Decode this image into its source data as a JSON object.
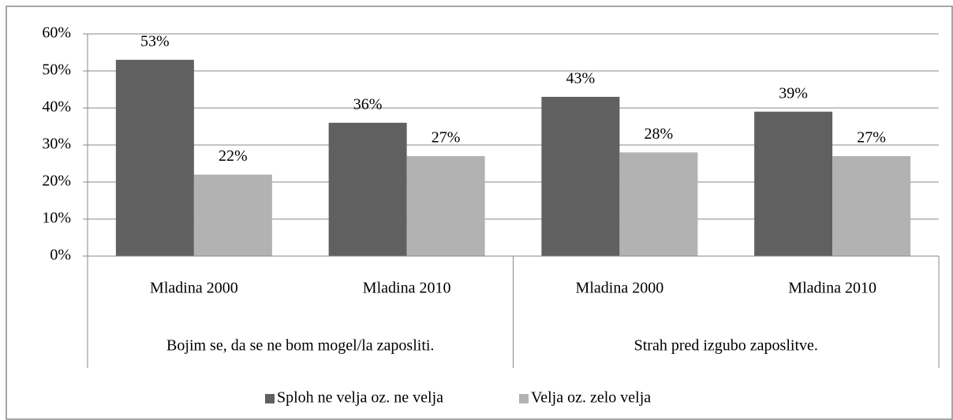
{
  "chart_data": {
    "type": "bar",
    "categories": [
      "Mladina 2000",
      "Mladina 2010",
      "Mladina 2000",
      "Mladina 2010"
    ],
    "groups": [
      "Bojim se, da se ne bom mogel/la zaposliti.",
      "Strah pred izgubo zaposlitve."
    ],
    "series": [
      {
        "name": "Sploh ne velja oz. ne velja",
        "color": "#606060",
        "values": [
          53,
          36,
          43,
          39
        ],
        "value_labels": [
          "53%",
          "36%",
          "43%",
          "39%"
        ]
      },
      {
        "name": "Velja oz. zelo velja",
        "color": "#b2b2b2",
        "values": [
          22,
          27,
          28,
          27
        ],
        "value_labels": [
          "22%",
          "27%",
          "28%",
          "27%"
        ]
      }
    ],
    "ylim": [
      0,
      60
    ],
    "yticks": [
      {
        "value": 0,
        "label": "0%"
      },
      {
        "value": 10,
        "label": "10%"
      },
      {
        "value": 20,
        "label": "20%"
      },
      {
        "value": 30,
        "label": "30%"
      },
      {
        "value": 40,
        "label": "40%"
      },
      {
        "value": 50,
        "label": "50%"
      },
      {
        "value": 60,
        "label": "60%"
      }
    ],
    "grid": true,
    "legend": "bottom"
  }
}
